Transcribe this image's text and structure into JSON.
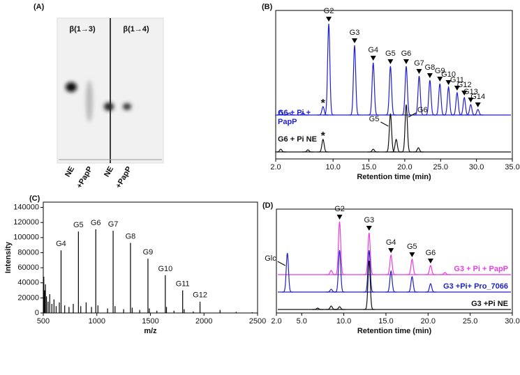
{
  "tlc": {
    "panel_label": "(A)",
    "groups": [
      "β(1→3)",
      "β(1→4)"
    ],
    "lanes": [
      "NE",
      "+PapP",
      "NE",
      "+PapP"
    ]
  },
  "chart_data": [
    {
      "type": "chromatogram",
      "panel_label": "(B)",
      "x_label": "Retention time (min)",
      "xlim": [
        2,
        35
      ],
      "xticks": [
        {
          "value": 2,
          "label": "2.0"
        },
        {
          "value": 10,
          "label": "10.0"
        },
        {
          "value": 15,
          "label": "15.0"
        },
        {
          "value": 20,
          "label": "20.0"
        },
        {
          "value": 25,
          "label": "25.0"
        },
        {
          "value": 30,
          "label": "30.0"
        },
        {
          "value": 35,
          "label": "35.0"
        }
      ],
      "series": [
        {
          "name": "G6 + Pi + PapP",
          "color": "#1f1fd0",
          "x": [
            2.7,
            3.9,
            5.8,
            8.6,
            9.4,
            13.0,
            15.6,
            18.0,
            20.2,
            22.0,
            23.5,
            24.9,
            26.1,
            27.3,
            28.3,
            29.2,
            30.2
          ],
          "values": [
            6,
            3,
            3,
            12,
            131,
            100,
            75,
            70,
            70,
            56,
            50,
            45,
            40,
            32,
            25,
            15,
            8
          ],
          "peak_labels": [
            null,
            null,
            null,
            null,
            "G2",
            "G3",
            "G4",
            "G5",
            "G6",
            "G7",
            "G8",
            "G9",
            "G10",
            "G11",
            "G12",
            "G13",
            "G14"
          ],
          "peak_notes": [
            null,
            null,
            null,
            "*",
            null,
            null,
            null,
            null,
            null,
            null,
            null,
            null,
            null,
            null,
            null,
            null,
            null
          ]
        },
        {
          "name": "G6 + Pi NE",
          "color": "#111111",
          "x": [
            2.7,
            6.5,
            8.6,
            15.6,
            18.0,
            18.8,
            20.2,
            21.9
          ],
          "values": [
            4,
            3,
            18,
            4,
            55,
            18,
            68,
            6
          ],
          "peak_labels": [
            null,
            null,
            null,
            null,
            "G5",
            null,
            "G6",
            null
          ],
          "label_side": [
            null,
            null,
            null,
            null,
            "left",
            null,
            "right",
            null
          ],
          "peak_notes": [
            null,
            null,
            "*",
            null,
            null,
            null,
            null,
            null
          ]
        }
      ]
    },
    {
      "type": "spectrum",
      "panel_label": "(C)",
      "x_label": "m/z",
      "y_label": "Intensity",
      "color": "#000000",
      "xlim": [
        500,
        2500
      ],
      "xticks": [
        500,
        1000,
        1500,
        2000,
        2500
      ],
      "ylim": [
        0,
        147000
      ],
      "yticks": [
        0,
        20000,
        40000,
        60000,
        80000,
        100000,
        120000,
        140000
      ],
      "x": [
        505,
        512,
        520,
        530,
        545,
        560,
        580,
        600,
        620,
        650,
        666,
        700,
        740,
        780,
        828,
        850,
        900,
        950,
        990,
        1010,
        1100,
        1152,
        1170,
        1250,
        1314,
        1330,
        1400,
        1477,
        1490,
        1560,
        1639,
        1650,
        1720,
        1801,
        1815,
        1900,
        1963,
        2150,
        2300,
        2450
      ],
      "values": [
        48000,
        30000,
        38000,
        22000,
        15000,
        25000,
        12000,
        18000,
        9000,
        14000,
        83000,
        10000,
        8000,
        12000,
        108000,
        9000,
        14000,
        8000,
        111000,
        10000,
        6000,
        109000,
        9000,
        5000,
        93000,
        7000,
        4000,
        72000,
        6000,
        3000,
        50000,
        8000,
        3000,
        30000,
        5000,
        2000,
        15000,
        4000,
        1500,
        1000
      ],
      "peak_labels": [
        null,
        null,
        null,
        null,
        null,
        null,
        null,
        null,
        null,
        null,
        "G4",
        null,
        null,
        null,
        "G5",
        null,
        null,
        null,
        "G6",
        null,
        null,
        "G7",
        null,
        null,
        "G8",
        null,
        null,
        "G9",
        null,
        null,
        "G10",
        null,
        null,
        "G11",
        null,
        null,
        "G12",
        null,
        null,
        null
      ]
    },
    {
      "type": "chromatogram",
      "panel_label": "(D)",
      "x_label": "Retention time (min)",
      "xlim": [
        2,
        30
      ],
      "xticks": [
        {
          "value": 2,
          "label": "2.0"
        },
        {
          "value": 5,
          "label": "5.0"
        },
        {
          "value": 10,
          "label": "10.0"
        },
        {
          "value": 15,
          "label": "15.0"
        },
        {
          "value": 20,
          "label": "20.0"
        },
        {
          "value": 25,
          "label": "25.0"
        },
        {
          "value": 30,
          "label": "30.0"
        }
      ],
      "series": [
        {
          "name": "G3 + Pi + PapP",
          "color": "#e83ee0",
          "x": [
            8.5,
            9.5,
            13.0,
            15.6,
            18.1,
            20.3,
            22.0
          ],
          "values": [
            6,
            76,
            60,
            28,
            22,
            13,
            3
          ],
          "peak_labels": [
            null,
            "G2",
            "G3",
            "G4",
            "G5",
            "G6",
            null
          ]
        },
        {
          "name": "G3 +Pi+ Pro_7066",
          "color": "#2020c8",
          "x": [
            3.3,
            8.5,
            9.5,
            13.0,
            15.6,
            18.1,
            20.3
          ],
          "values": [
            56,
            4,
            60,
            60,
            30,
            22,
            12
          ],
          "peak_labels": [
            "Glc",
            null,
            null,
            null,
            null,
            null,
            null
          ],
          "label_side": [
            "left",
            null,
            null,
            null,
            null,
            null,
            null
          ]
        },
        {
          "name": "G3 +Pi NE",
          "color": "#111111",
          "x": [
            6.9,
            8.5,
            9.5,
            13.0
          ],
          "values": [
            2,
            5,
            4,
            70
          ]
        }
      ]
    }
  ]
}
